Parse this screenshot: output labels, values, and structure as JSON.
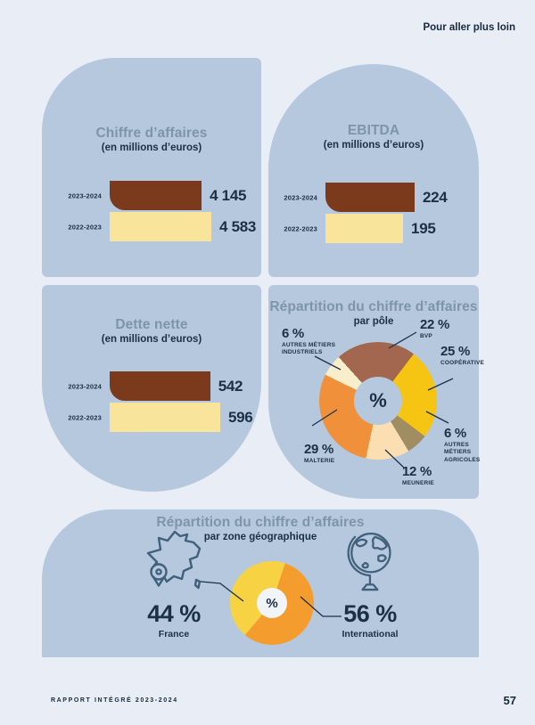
{
  "page": {
    "background": "#e9eef6",
    "panel_color": "#b5c8dd",
    "navy_text": "#1b3047",
    "slate_title": "#7e95a9",
    "icon_stroke": "#40607b"
  },
  "header": {
    "link_label": "Pour aller plus loin"
  },
  "footer": {
    "report_title": "RAPPORT INTÉGRÉ 2023-2024",
    "page_number": "57"
  },
  "chart_data": [
    {
      "type": "bar",
      "title": "Chiffre d’affaires",
      "subtitle": "(en millions d’euros)",
      "categories": [
        "2023-2024",
        "2022-2023"
      ],
      "values": [
        4145,
        4583
      ],
      "value_labels": [
        "4 145",
        "4 583"
      ],
      "colors": [
        "#7c3a1d",
        "#f9e49c"
      ]
    },
    {
      "type": "bar",
      "title": "EBITDA",
      "subtitle": "(en millions d’euros)",
      "categories": [
        "2023-2024",
        "2022-2023"
      ],
      "values": [
        224,
        195
      ],
      "value_labels": [
        "224",
        "195"
      ],
      "colors": [
        "#7c3a1d",
        "#f9e49c"
      ]
    },
    {
      "type": "bar",
      "title": "Dette nette",
      "subtitle": "(en millions d’euros)",
      "categories": [
        "2023-2024",
        "2022-2023"
      ],
      "values": [
        542,
        596
      ],
      "value_labels": [
        "542",
        "596"
      ],
      "colors": [
        "#7c3a1d",
        "#f9e49c"
      ]
    },
    {
      "type": "pie",
      "title": "Répartition du chiffre d’affaires",
      "subtitle": "par pôle",
      "center_label": "%",
      "start_deg": -42,
      "legend_position": "around",
      "slices": [
        {
          "label": "BVP",
          "pct": 22,
          "pct_label": "22 %",
          "color": "#a2674e"
        },
        {
          "label": "COOPÉRATIVE",
          "pct": 25,
          "pct_label": "25 %",
          "color": "#f6c413"
        },
        {
          "label": "AUTRES MÉTIERS AGRICOLES",
          "pct": 6,
          "pct_label": "6 %",
          "color": "#a08d62"
        },
        {
          "label": "MEUNERIE",
          "pct": 12,
          "pct_label": "12 %",
          "color": "#fbdfb2"
        },
        {
          "label": "MALTERIE",
          "pct": 29,
          "pct_label": "29 %",
          "color": "#f0903a"
        },
        {
          "label": "AUTRES MÉTIERS INDUSTRIELS",
          "pct": 6,
          "pct_label": "6 %",
          "color": "#f8eecb"
        }
      ]
    },
    {
      "type": "pie",
      "title": "Répartition du chiffre d’affaires",
      "subtitle": "par zone géographique",
      "center_label": "%",
      "start_deg": 220,
      "legend_position": "sides",
      "slices": [
        {
          "label": "France",
          "pct": 44,
          "pct_label": "44 %",
          "color": "#f7d243"
        },
        {
          "label": "International",
          "pct": 56,
          "pct_label": "56 %",
          "color": "#f49d2e"
        }
      ]
    }
  ]
}
